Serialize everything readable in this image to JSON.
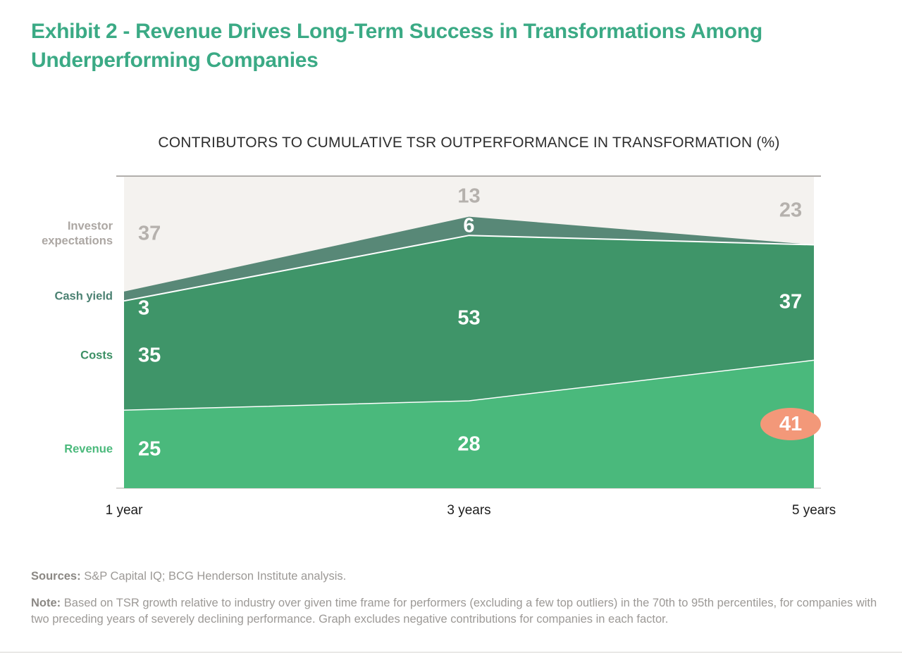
{
  "page": {
    "title": "Exhibit 2 - Revenue Drives Long-Term Success in Transformations Among Underperforming Companies"
  },
  "chart": {
    "title": "CONTRIBUTORS TO CUMULATIVE TSR OUTPERFORMANCE IN TRANSFORMATION (%)"
  },
  "chart_data": {
    "type": "area",
    "stacked": true,
    "title": "CONTRIBUTORS TO CUMULATIVE TSR OUTPERFORMANCE IN TRANSFORMATION (%)",
    "categories": [
      "1 year",
      "3 years",
      "5 years"
    ],
    "ylim": [
      0,
      100
    ],
    "grid": false,
    "legend_position": "left",
    "background_color": "#f4f2ef",
    "top_rule_color": "#b1aeab",
    "bottom_rule_color": "#c9c6c3",
    "separator_color": "#ffffff",
    "series": [
      {
        "name": "Revenue",
        "values": [
          25,
          28,
          41
        ],
        "labels": [
          "25",
          "28",
          "41"
        ],
        "color": "#4ab97c",
        "label_color": "#4ab97b",
        "value_color": "#ffffff"
      },
      {
        "name": "Costs",
        "values": [
          35,
          53,
          37
        ],
        "labels": [
          "35",
          "53",
          "37"
        ],
        "color": "#3f9569",
        "label_color": "#3c9065",
        "value_color": "#ffffff"
      },
      {
        "name": "Cash yield",
        "values": [
          3,
          6,
          0
        ],
        "labels": [
          "3",
          "6",
          ""
        ],
        "color": "#588877",
        "label_color": "#4b8172",
        "value_color": "#ffffff"
      },
      {
        "name": "Investor expectations",
        "values": [
          37,
          13,
          23
        ],
        "labels": [
          "37",
          "13",
          "23"
        ],
        "color": "#f4f2ef",
        "label_color": "#aca7a3",
        "value_color": "#b5b1ad"
      }
    ],
    "highlight": {
      "series_index": 0,
      "category_index": 2,
      "value": "41",
      "color": "#f39879",
      "text_color": "#ffffff"
    }
  },
  "footer": {
    "sources_label": "Sources:",
    "sources_text": " S&P Capital IQ; BCG Henderson Institute analysis.",
    "note_label": "Note:",
    "note_text": " Based on TSR growth relative to industry over given time frame for performers (excluding a few top outliers) in the 70th to 95th percentiles, for companies with two preceding years of severely declining performance. Graph excludes negative contributions for companies in each factor."
  }
}
